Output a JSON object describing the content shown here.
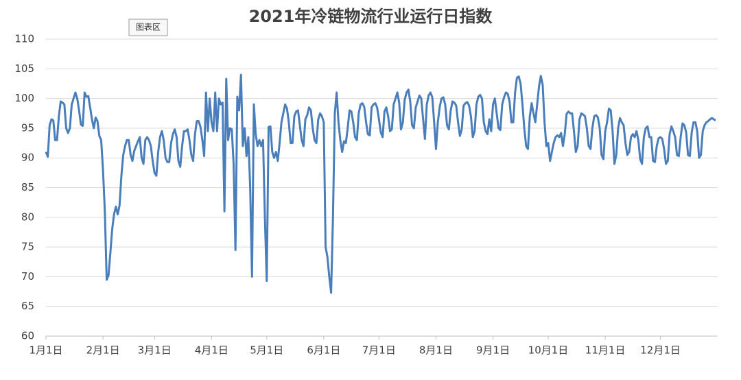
{
  "chart_data": {
    "type": "line",
    "title": "2021年冷链物流行业运行日指数",
    "tooltip": "图表区",
    "xlim": [
      0,
      364
    ],
    "xticks": [
      {
        "value": 0,
        "label": "1月1日"
      },
      {
        "value": 31,
        "label": "2月1日"
      },
      {
        "value": 59,
        "label": "3月1日"
      },
      {
        "value": 90,
        "label": "4月1日"
      },
      {
        "value": 120,
        "label": "5月1日"
      },
      {
        "value": 151,
        "label": "6月1日"
      },
      {
        "value": 181,
        "label": "7月1日"
      },
      {
        "value": 212,
        "label": "8月1日"
      },
      {
        "value": 243,
        "label": "9月1日"
      },
      {
        "value": 273,
        "label": "10月1日"
      },
      {
        "value": 304,
        "label": "11月1日"
      },
      {
        "value": 334,
        "label": "12月1日"
      }
    ],
    "ylim": [
      60,
      110
    ],
    "yticks": [
      60,
      65,
      70,
      75,
      80,
      85,
      90,
      95,
      100,
      105,
      110
    ],
    "grid": true,
    "color": "#4a7ebb",
    "values": [
      91,
      90.2,
      95.5,
      96.5,
      96.3,
      93,
      93,
      97,
      99.5,
      99.3,
      99,
      95,
      94.2,
      95,
      99,
      100,
      101,
      100,
      98,
      95.6,
      95.4,
      101,
      100.3,
      100.4,
      98.5,
      96.5,
      95,
      96.8,
      96.2,
      93.7,
      93,
      88,
      81,
      69.5,
      70.2,
      74,
      78,
      80.5,
      81.8,
      80.5,
      82,
      87,
      90.5,
      92,
      93,
      93,
      90.5,
      89.5,
      91.2,
      92,
      92.8,
      93.5,
      90,
      89,
      93,
      93.5,
      93,
      92,
      89.5,
      87.5,
      87,
      91,
      93.5,
      94.5,
      93,
      90,
      89.3,
      89.3,
      92.5,
      94,
      94.8,
      93.5,
      89.5,
      88.5,
      92,
      94.5,
      94.5,
      94.8,
      93,
      90.5,
      89.5,
      94,
      96.2,
      96.2,
      95.2,
      93,
      90.3,
      101,
      94.5,
      100,
      96,
      94.5,
      101,
      94.5,
      100,
      99,
      99.3,
      81,
      103.3,
      93,
      95,
      94.8,
      89,
      74.5,
      100.3,
      98,
      104,
      92,
      95,
      90.3,
      93.5,
      85,
      70,
      99,
      94,
      92,
      93,
      92,
      93,
      80,
      69.3,
      95.2,
      95.3,
      91,
      90,
      91,
      89.5,
      92.5,
      96,
      97.5,
      99,
      98.3,
      96,
      92.5,
      92.5,
      97,
      97.8,
      98,
      95.5,
      93,
      92,
      96.5,
      97.2,
      98.5,
      98,
      95,
      93,
      92.5,
      96.5,
      97.5,
      97,
      96,
      75,
      73.3,
      70,
      67.3,
      80,
      97.5,
      101,
      96,
      93,
      91,
      92.8,
      92.5,
      95,
      98,
      97.8,
      96,
      93.5,
      93,
      97.5,
      99,
      99.2,
      98.6,
      96,
      94,
      93.8,
      98.5,
      99,
      99.2,
      98.5,
      96.5,
      94.3,
      93.5,
      97.8,
      98.5,
      97,
      94.5,
      94.8,
      99,
      100,
      101,
      99.3,
      94.8,
      96,
      99.8,
      101,
      101.5,
      99.5,
      95.5,
      95,
      98.5,
      99.5,
      100.5,
      100,
      96.5,
      93.2,
      99,
      100.5,
      101,
      100.2,
      96,
      91.5,
      96,
      98.5,
      100,
      100.2,
      99,
      95.5,
      94.8,
      98,
      99.5,
      99.3,
      98.8,
      96,
      93.7,
      94.8,
      98.8,
      99.2,
      99.4,
      98.8,
      97,
      93.5,
      94.5,
      99,
      100.3,
      100.6,
      100,
      96,
      94.5,
      94,
      96.5,
      94.5,
      99,
      100,
      97.5,
      95,
      94.7,
      99,
      100.2,
      101,
      100.8,
      99.5,
      96,
      96,
      101,
      103.5,
      103.7,
      102.5,
      99,
      95,
      92,
      91.5,
      97,
      99.2,
      97.5,
      96,
      99,
      102,
      103.8,
      102.3,
      96,
      92,
      92.5,
      89.5,
      91,
      92.5,
      93.5,
      93.8,
      93.5,
      94.2,
      92,
      94,
      97.4,
      97.8,
      97.5,
      97.5,
      94.5,
      91,
      92,
      96.5,
      97.5,
      97.3,
      97,
      95,
      92,
      91.5,
      95,
      97,
      97.2,
      96.8,
      95,
      90.5,
      89.8,
      94.5,
      96,
      98.3,
      98,
      94.5,
      89,
      90.5,
      95,
      96.7,
      96,
      95.5,
      92.5,
      90.5,
      91,
      93.5,
      94,
      93.5,
      94.5,
      93,
      89.8,
      89,
      93.5,
      95,
      95.3,
      93.5,
      93.5,
      89.5,
      89.3,
      92,
      93.3,
      93.5,
      93.2,
      91.5,
      89,
      89.5,
      94,
      95.3,
      94.5,
      93.5,
      90.5,
      90.3,
      93.5,
      95.8,
      95.5,
      94.3,
      90.5,
      90.3,
      94.3,
      96,
      96,
      94.5,
      90,
      90.5,
      94.5,
      95.5,
      96,
      96.2,
      96.5,
      96.7,
      96.5,
      96.3
    ]
  }
}
